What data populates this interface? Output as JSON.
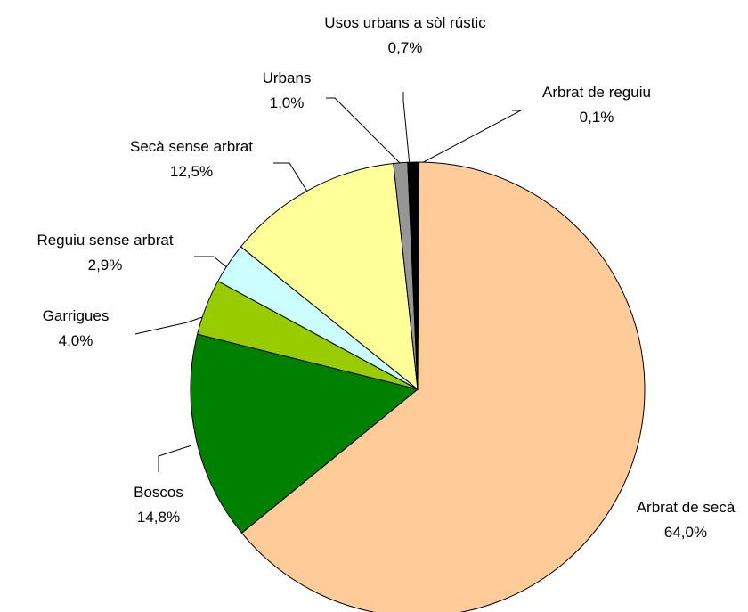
{
  "chart_data": {
    "type": "pie",
    "categories": [
      "Arbrat de reguiu",
      "Arbrat de secà",
      "Boscos",
      "Garrigues",
      "Reguiu sense arbrat",
      "Secà sense arbrat",
      "Urbans",
      "Usos urbans a sòl rústic"
    ],
    "values": [
      0.1,
      64.0,
      14.8,
      4.0,
      2.9,
      12.5,
      1.0,
      0.7
    ],
    "value_labels": [
      "0,1%",
      "64,0%",
      "14,8%",
      "4,0%",
      "2,9%",
      "12,5%",
      "1,0%",
      "0,7%"
    ],
    "colors": [
      "#000000",
      "#FFCC99",
      "#008000",
      "#99CC00",
      "#CCFFFF",
      "#FFFF99",
      "#969696",
      "#000000"
    ]
  }
}
